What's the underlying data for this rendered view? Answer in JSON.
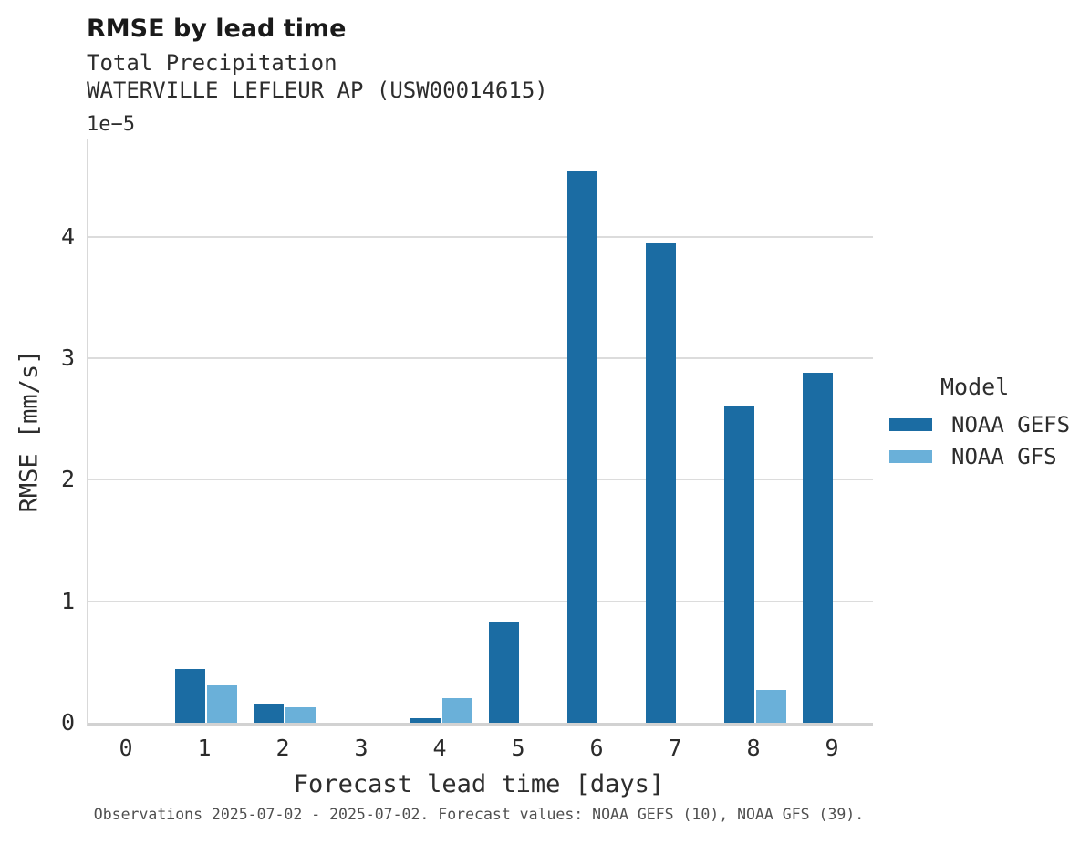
{
  "header": {
    "title": "RMSE by lead time",
    "subtitle": "Total Precipitation",
    "station": "WATERVILLE LEFLEUR AP (USW00014615)"
  },
  "chart_data": {
    "type": "bar",
    "title": "RMSE by lead time",
    "subtitle": "Total Precipitation",
    "station": "WATERVILLE LEFLEUR AP (USW00014615)",
    "categories": [
      "0",
      "1",
      "2",
      "3",
      "4",
      "5",
      "6",
      "7",
      "8",
      "9"
    ],
    "series": [
      {
        "name": "NOAA GEFS",
        "color": "#1b6ca3",
        "values": [
          0,
          0.44,
          0.16,
          0,
          0.04,
          0.83,
          4.54,
          3.95,
          2.61,
          2.88
        ]
      },
      {
        "name": "NOAA GFS",
        "color": "#6ab0d9",
        "values": [
          0,
          0.31,
          0.13,
          0,
          0.2,
          0,
          0,
          0,
          0.27,
          0
        ]
      }
    ],
    "value_units": "values are in units of 1e-5 mm/s",
    "y_offset_label": "1e−5",
    "xlabel": "Forecast lead time [days]",
    "ylabel": "RMSE [mm/s]",
    "yticks": [
      "0",
      "1",
      "2",
      "3",
      "4"
    ],
    "ylim": [
      0,
      4.81
    ],
    "grid": "horizontal",
    "legend_position": "right-center"
  },
  "legend": {
    "title": "Model"
  },
  "colors": {
    "gefs": "#1b6ca3",
    "gfs": "#6ab0d9",
    "gridline": "#dcdcdc",
    "spine": "#d2d2d2"
  },
  "caption": "Observations 2025-07-02 - 2025-07-02. Forecast values: NOAA GEFS (10), NOAA GFS (39)."
}
